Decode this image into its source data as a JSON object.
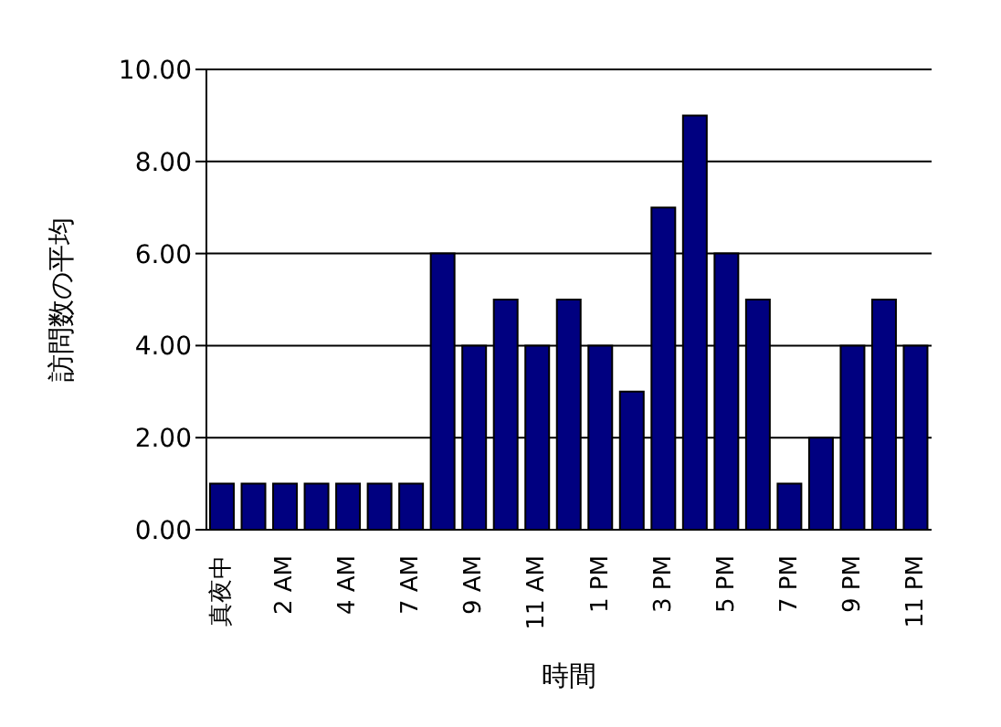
{
  "chart_data": {
    "type": "bar",
    "xlabel": "時間",
    "ylabel": "訪問数の平均",
    "categories": [
      "真夜中",
      null,
      "2 AM",
      null,
      "4 AM",
      null,
      "7 AM",
      null,
      "9 AM",
      null,
      "11 AM",
      null,
      "1 PM",
      null,
      "3 PM",
      null,
      "5 PM",
      null,
      "7 PM",
      null,
      "9 PM",
      null,
      "11 PM"
    ],
    "values": [
      1,
      1,
      1,
      1,
      1,
      1,
      1,
      6,
      4,
      5,
      4,
      5,
      4,
      3,
      7,
      9,
      6,
      5,
      1,
      2,
      4,
      5,
      4
    ],
    "color": "#000080",
    "ylim": [
      0,
      10
    ],
    "yticks": [
      {
        "value": 0,
        "label": "0.00"
      },
      {
        "value": 2,
        "label": "2.00"
      },
      {
        "value": 4,
        "label": "4.00"
      },
      {
        "value": 6,
        "label": "6.00"
      },
      {
        "value": 8,
        "label": "8.00"
      },
      {
        "value": 10,
        "label": "10.00"
      }
    ],
    "grid": "y"
  }
}
